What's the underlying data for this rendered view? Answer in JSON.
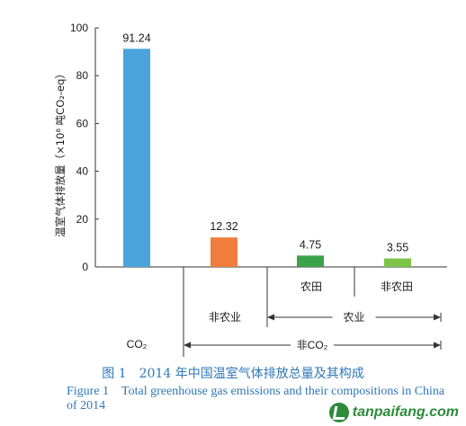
{
  "chart_data": {
    "type": "bar",
    "ylabel": "温室气体排放量（×10⁸ 吨CO₂-eq）",
    "ylim": [
      0,
      100
    ],
    "yticks": [
      0,
      20,
      40,
      60,
      80,
      100
    ],
    "categories": [
      "CO₂",
      "非农业",
      "农田",
      "非农田"
    ],
    "values": [
      91.24,
      12.32,
      4.75,
      3.55
    ],
    "value_labels": [
      "91.24",
      "12.32",
      "4.75",
      "3.55"
    ],
    "colors": [
      "#4aa3dc",
      "#ef7d3c",
      "#3aa24a",
      "#7bc447"
    ],
    "groups": [
      {
        "label": "农业",
        "spans": [
          "农田",
          "非农田"
        ]
      },
      {
        "label": "非CO₂",
        "spans": [
          "非农业",
          "农田",
          "非农田"
        ]
      }
    ]
  },
  "caption": {
    "zh": "图 1　2014 年中国温室气体排放总量及其构成",
    "en": "Figure 1　Total greenhouse gas emissions and their compositions in China of 2014"
  },
  "watermark": {
    "text": "tanpaifang.com",
    "logo_icon": "leaf-logo-icon"
  }
}
